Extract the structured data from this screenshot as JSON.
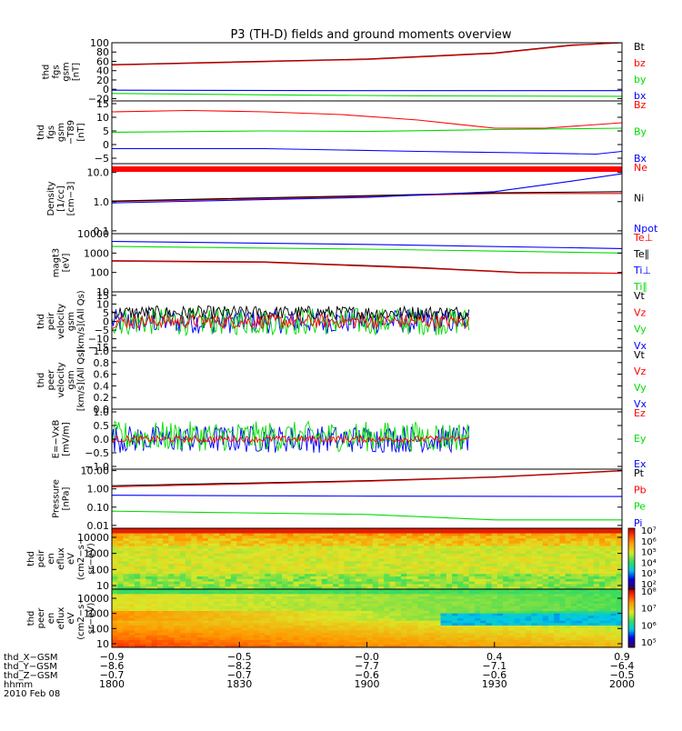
{
  "title": "P3 (TH-D) fields and ground moments overview",
  "colors": {
    "black": "#000000",
    "red": "#ff0000",
    "green": "#00dd00",
    "blue": "#0000ff"
  },
  "chart_data": [
    {
      "type": "line",
      "ylabel": [
        "thd",
        "fgs",
        "gsm",
        "[nT]"
      ],
      "yticks": [
        "100",
        "80",
        "60",
        "40",
        "20",
        "0",
        "−20"
      ],
      "ylim": [
        -25,
        100
      ],
      "legend": [
        {
          "label": "Bt",
          "color": "#000000"
        },
        {
          "label": "bz",
          "color": "#ff0000"
        },
        {
          "label": "by",
          "color": "#00dd00"
        },
        {
          "label": "bx",
          "color": "#0000ff"
        }
      ],
      "series": [
        {
          "name": "Bt",
          "color": "#000000",
          "x": [
            0,
            0.5,
            0.75,
            0.9,
            1.0
          ],
          "y": [
            53,
            65,
            78,
            95,
            100
          ]
        },
        {
          "name": "bz",
          "color": "#ff0000",
          "x": [
            0,
            0.5,
            0.75,
            0.9,
            1.0
          ],
          "y": [
            52,
            64,
            77,
            94,
            100
          ]
        },
        {
          "name": "by",
          "color": "#00dd00",
          "x": [
            0,
            0.3,
            0.6,
            1.0
          ],
          "y": [
            -9,
            -12,
            -14,
            -15
          ]
        },
        {
          "name": "bx",
          "color": "#0000ff",
          "x": [
            0,
            0.5,
            1.0
          ],
          "y": [
            -2,
            -3,
            -3
          ]
        }
      ]
    },
    {
      "type": "line",
      "ylabel": [
        "thd",
        "fgs",
        "gsm",
        "−T89",
        "[nT]"
      ],
      "yticks": [
        "15",
        "10",
        "5",
        "0",
        "−5"
      ],
      "ylim": [
        -7,
        16
      ],
      "legend": [
        {
          "label": "Bz",
          "color": "#ff0000"
        },
        {
          "label": "By",
          "color": "#00dd00"
        },
        {
          "label": "Bx",
          "color": "#0000ff"
        }
      ],
      "series": [
        {
          "name": "Bz",
          "color": "#ff0000",
          "x": [
            0,
            0.15,
            0.3,
            0.45,
            0.6,
            0.75,
            0.85,
            1.0
          ],
          "y": [
            12,
            12.5,
            12,
            11,
            9,
            6,
            6,
            8
          ]
        },
        {
          "name": "By",
          "color": "#00dd00",
          "x": [
            0,
            0.3,
            0.5,
            0.75,
            1.0
          ],
          "y": [
            4.5,
            5,
            4.8,
            5.5,
            6
          ]
        },
        {
          "name": "Bx",
          "color": "#0000ff",
          "x": [
            0,
            0.3,
            0.6,
            0.8,
            0.95,
            1.0
          ],
          "y": [
            -1.5,
            -1.5,
            -2.5,
            -3,
            -3.5,
            -2.5
          ]
        }
      ]
    },
    {
      "type": "line",
      "log": true,
      "ylabel": [
        "Density",
        "[1/cc]",
        "[cm−3]"
      ],
      "yticks": [
        "10.0",
        "1.0",
        "0.1"
      ],
      "ylim": [
        0.08,
        20
      ],
      "legend": [
        {
          "label": "Ne",
          "color": "#ff0000"
        },
        {
          "label": "Ni",
          "color": "#000000"
        },
        {
          "label": "Npot",
          "color": "#0000ff"
        }
      ],
      "series": [
        {
          "name": "Ne",
          "color": "#ff0000",
          "x": [
            0,
            0.5,
            0.75,
            1.0
          ],
          "y": [
            1.0,
            1.5,
            1.9,
            1.9
          ]
        },
        {
          "name": "Ni",
          "color": "#000000",
          "x": [
            0,
            0.5,
            0.75,
            1.0
          ],
          "y": [
            1.05,
            1.6,
            2.0,
            2.2
          ]
        },
        {
          "name": "Npot",
          "color": "#0000ff",
          "x": [
            0,
            0.5,
            0.75,
            0.9,
            1.0
          ],
          "y": [
            0.9,
            1.4,
            2.2,
            5.0,
            9.0
          ]
        }
      ]
    },
    {
      "type": "line",
      "log": true,
      "ylabel": [
        "magt3",
        "[eV]"
      ],
      "yticks": [
        "10000",
        "1000",
        "100",
        "10"
      ],
      "ylim": [
        10,
        10000
      ],
      "legend": [
        {
          "label": "Te⊥",
          "color": "#ff0000"
        },
        {
          "label": "Te∥",
          "color": "#000000"
        },
        {
          "label": "Ti⊥",
          "color": "#0000ff"
        },
        {
          "label": "Ti∥",
          "color": "#00dd00"
        }
      ],
      "series": [
        {
          "name": "Ti⊥",
          "color": "#0000ff",
          "x": [
            0,
            0.5,
            1.0
          ],
          "y": [
            4000,
            2800,
            1700
          ]
        },
        {
          "name": "Ti∥",
          "color": "#00dd00",
          "x": [
            0,
            0.5,
            1.0
          ],
          "y": [
            2200,
            1600,
            1000
          ]
        },
        {
          "name": "Te∥",
          "color": "#000000",
          "x": [
            0,
            0.3,
            0.6,
            0.8,
            1.0
          ],
          "y": [
            400,
            350,
            180,
            100,
            90
          ]
        },
        {
          "name": "Te⊥",
          "color": "#ff0000",
          "x": [
            0,
            0.3,
            0.6,
            0.8,
            1.0
          ],
          "y": [
            380,
            330,
            170,
            95,
            90
          ]
        }
      ]
    },
    {
      "type": "line",
      "ylabel": [
        "thd",
        "peir",
        "velocity",
        "gsm",
        "[km/s](All Qs)"
      ],
      "yticks": [
        "15",
        "10",
        "5",
        "0",
        "−5",
        "−10",
        "−15"
      ],
      "ylim": [
        -17,
        17
      ],
      "legend": [
        {
          "label": "Vt",
          "color": "#000000"
        },
        {
          "label": "Vz",
          "color": "#ff0000"
        },
        {
          "label": "Vy",
          "color": "#00dd00"
        },
        {
          "label": "Vx",
          "color": "#0000ff"
        }
      ],
      "noise": {
        "end": 0.7,
        "bands": [
          {
            "color": "#0000ff",
            "mean": 0,
            "amp": 7
          },
          {
            "color": "#00dd00",
            "mean": 0,
            "amp": 8
          },
          {
            "color": "#000000",
            "mean": 5,
            "amp": 4
          },
          {
            "color": "#ff0000",
            "mean": 0,
            "amp": 4
          }
        ]
      }
    },
    {
      "type": "line",
      "ylabel": [
        "thd",
        "peer",
        "velocity",
        "gsm",
        "[km/s](All Qs)"
      ],
      "yticks": [
        "1.0",
        "0.8",
        "0.6",
        "0.4",
        "0.2",
        "0.0"
      ],
      "ylim": [
        0,
        1
      ],
      "legend": [
        {
          "label": "Vt",
          "color": "#000000"
        },
        {
          "label": "Vz",
          "color": "#ff0000"
        },
        {
          "label": "Vy",
          "color": "#00dd00"
        },
        {
          "label": "Vx",
          "color": "#0000ff"
        }
      ],
      "series": []
    },
    {
      "type": "line",
      "ylabel": [
        "E=−VxB",
        "[mV/m]"
      ],
      "yticks": [
        "1.0",
        "0.5",
        "0.0",
        "−0.5",
        "−1.0"
      ],
      "ylim": [
        -1.1,
        1.1
      ],
      "legend": [
        {
          "label": "Ez",
          "color": "#ff0000"
        },
        {
          "label": "Ey",
          "color": "#00dd00"
        },
        {
          "label": "Ex",
          "color": "#0000ff"
        }
      ],
      "noise": {
        "end": 0.7,
        "bands": [
          {
            "color": "#0000ff",
            "mean": 0,
            "amp": 0.5
          },
          {
            "color": "#00dd00",
            "mean": 0.1,
            "amp": 0.55
          },
          {
            "color": "#ff0000",
            "mean": 0,
            "amp": 0.12
          }
        ]
      }
    },
    {
      "type": "line",
      "log": true,
      "ylabel": [
        "Pressure",
        "[nPa]"
      ],
      "yticks": [
        "10.00",
        "1.00",
        "0.10",
        "0.01"
      ],
      "ylim": [
        0.007,
        12
      ],
      "legend": [
        {
          "label": "Pt",
          "color": "#000000"
        },
        {
          "label": "Pb",
          "color": "#ff0000"
        },
        {
          "label": "Pe",
          "color": "#00dd00"
        },
        {
          "label": "Pi",
          "color": "#0000ff"
        }
      ],
      "series": [
        {
          "name": "Pt",
          "color": "#000000",
          "x": [
            0,
            0.5,
            0.75,
            1.0
          ],
          "y": [
            1.5,
            2.8,
            4.5,
            10
          ]
        },
        {
          "name": "Pb",
          "color": "#ff0000",
          "x": [
            0,
            0.5,
            0.75,
            1.0
          ],
          "y": [
            1.3,
            2.6,
            4.3,
            9.5
          ]
        },
        {
          "name": "Pi",
          "color": "#0000ff",
          "x": [
            0,
            0.5,
            1.0
          ],
          "y": [
            0.45,
            0.4,
            0.38
          ]
        },
        {
          "name": "Pe",
          "color": "#00dd00",
          "x": [
            0,
            0.5,
            0.75,
            1.0
          ],
          "y": [
            0.06,
            0.04,
            0.02,
            0.02
          ]
        }
      ]
    },
    {
      "type": "heatmap",
      "ylabel": [
        "thd",
        "peir",
        "en",
        "eflux",
        "eV",
        "(cm2−s−",
        "sr−eV)"
      ],
      "yticks": [
        "10000",
        "1000",
        "100",
        "10"
      ],
      "colorbar": [
        "10⁷",
        "10⁶",
        "10⁵",
        "10⁴",
        "10³",
        "10²"
      ]
    },
    {
      "type": "heatmap",
      "ylabel": [
        "thd",
        "peer",
        "en",
        "eflux",
        "eV",
        "(cm2−s−",
        "sr−eV)"
      ],
      "yticks": [
        "10000",
        "1000",
        "100",
        "10"
      ],
      "colorbar": [
        "10⁸",
        "10⁷",
        "10⁶",
        "10⁵"
      ]
    }
  ],
  "xaxis": {
    "rows": [
      {
        "label": "thd_X−GSM",
        "values": [
          "−0.9",
          "−0.5",
          "−0.0",
          "0.4",
          "0.9"
        ]
      },
      {
        "label": "thd_Y−GSM",
        "values": [
          "−8.6",
          "−8.2",
          "−7.7",
          "−7.1",
          "−6.4"
        ]
      },
      {
        "label": "thd_Z−GSM",
        "values": [
          "−0.7",
          "−0.7",
          "−0.6",
          "−0.6",
          "−0.5"
        ]
      },
      {
        "label": "hhmm",
        "values": [
          "1800",
          "1830",
          "1900",
          "1930",
          "2000"
        ]
      }
    ],
    "date": "2010 Feb 08"
  }
}
